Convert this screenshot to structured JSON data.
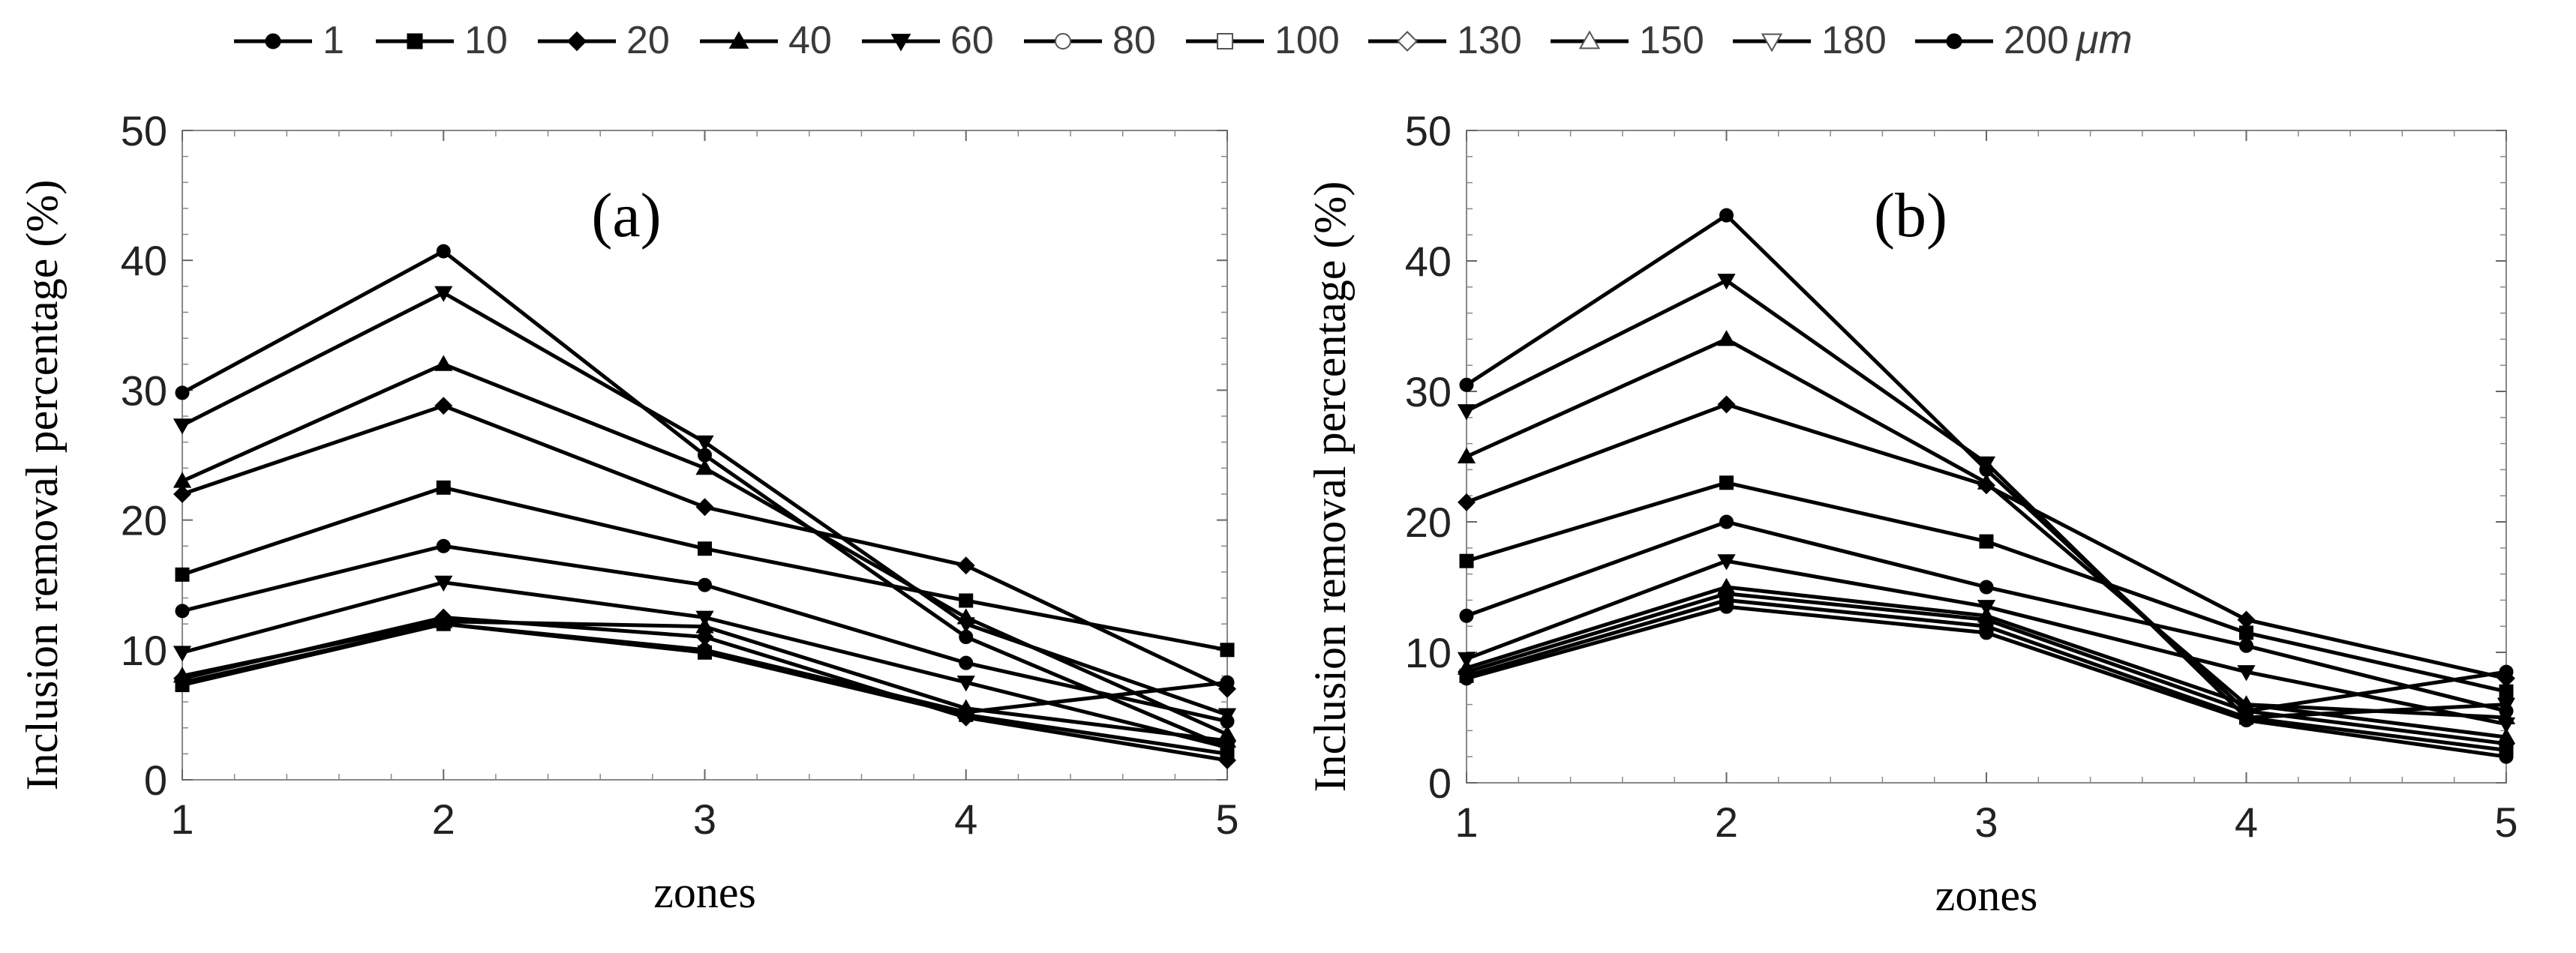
{
  "legend": {
    "items": [
      {
        "label": "1",
        "marker": "circle-filled"
      },
      {
        "label": "10",
        "marker": "square-filled"
      },
      {
        "label": "20",
        "marker": "diamond-filled"
      },
      {
        "label": "40",
        "marker": "triangle-up-filled"
      },
      {
        "label": "60",
        "marker": "triangle-down-filled"
      },
      {
        "label": "80",
        "marker": "circle-open"
      },
      {
        "label": "100",
        "marker": "square-open"
      },
      {
        "label": "130",
        "marker": "diamond-open"
      },
      {
        "label": "150",
        "marker": "triangle-up-open"
      },
      {
        "label": "180",
        "marker": "triangle-down-open"
      },
      {
        "label": "200",
        "marker": "circle-filled"
      }
    ],
    "unit": "μm"
  },
  "chart_data": [
    {
      "type": "line",
      "title": "(a)",
      "xlabel": "zones",
      "ylabel": "Inclusion removal percentage (%)",
      "x": [
        1,
        2,
        3,
        4,
        5
      ],
      "xticks": [
        "1",
        "2",
        "3",
        "4",
        "5"
      ],
      "yticks": [
        "0",
        "10",
        "20",
        "30",
        "40",
        "50"
      ],
      "xlim": [
        1,
        5
      ],
      "ylim": [
        0,
        50
      ],
      "grid": false,
      "series": [
        {
          "name": "1",
          "marker": "circle-filled",
          "values": [
            7.5,
            12.0,
            10.0,
            5.2,
            7.5
          ]
        },
        {
          "name": "10",
          "marker": "square-filled",
          "values": [
            7.3,
            12.0,
            9.8,
            5.0,
            2.0
          ]
        },
        {
          "name": "20",
          "marker": "diamond-filled",
          "values": [
            7.8,
            12.5,
            11.0,
            4.8,
            1.5
          ]
        },
        {
          "name": "40",
          "marker": "triangle-up-filled",
          "values": [
            8.0,
            12.2,
            11.8,
            5.5,
            3.0
          ]
        },
        {
          "name": "60",
          "marker": "triangle-down-filled",
          "values": [
            9.8,
            15.2,
            12.5,
            7.5,
            2.5
          ]
        },
        {
          "name": "80",
          "marker": "circle-filled",
          "values": [
            13.0,
            18.0,
            15.0,
            9.0,
            4.5
          ]
        },
        {
          "name": "100",
          "marker": "square-filled",
          "values": [
            15.8,
            22.5,
            17.8,
            13.8,
            10.0
          ]
        },
        {
          "name": "130",
          "marker": "diamond-filled",
          "values": [
            22.0,
            28.8,
            21.0,
            16.5,
            7.0
          ]
        },
        {
          "name": "150",
          "marker": "triangle-up-filled",
          "values": [
            23.0,
            32.0,
            24.0,
            12.5,
            3.5
          ]
        },
        {
          "name": "180",
          "marker": "triangle-down-filled",
          "values": [
            27.3,
            37.5,
            26.0,
            12.0,
            5.0
          ]
        },
        {
          "name": "200",
          "marker": "circle-filled",
          "values": [
            29.8,
            40.7,
            25.0,
            11.0,
            2.5
          ]
        }
      ]
    },
    {
      "type": "line",
      "title": "(b)",
      "xlabel": "zones",
      "ylabel": "Inclusion removal percentage (%)",
      "x": [
        1,
        2,
        3,
        4,
        5
      ],
      "xticks": [
        "1",
        "2",
        "3",
        "4",
        "5"
      ],
      "yticks": [
        "0",
        "10",
        "20",
        "30",
        "40",
        "50"
      ],
      "xlim": [
        1,
        5
      ],
      "ylim": [
        0,
        50
      ],
      "grid": false,
      "series": [
        {
          "name": "1",
          "marker": "circle-filled",
          "values": [
            8.0,
            13.5,
            11.5,
            4.8,
            2.0
          ]
        },
        {
          "name": "10",
          "marker": "square-filled",
          "values": [
            8.2,
            14.0,
            12.0,
            5.0,
            2.5
          ]
        },
        {
          "name": "20",
          "marker": "diamond-filled",
          "values": [
            8.5,
            14.5,
            12.5,
            5.5,
            3.0
          ]
        },
        {
          "name": "40",
          "marker": "triangle-up-filled",
          "values": [
            8.8,
            15.0,
            12.8,
            6.0,
            3.5
          ]
        },
        {
          "name": "60",
          "marker": "triangle-down-filled",
          "values": [
            9.5,
            17.0,
            13.5,
            8.5,
            4.5
          ]
        },
        {
          "name": "80",
          "marker": "circle-filled",
          "values": [
            12.8,
            20.0,
            15.0,
            10.5,
            5.5
          ]
        },
        {
          "name": "100",
          "marker": "square-filled",
          "values": [
            17.0,
            23.0,
            18.5,
            11.5,
            7.0
          ]
        },
        {
          "name": "130",
          "marker": "diamond-filled",
          "values": [
            21.5,
            29.0,
            22.8,
            12.5,
            8.0
          ]
        },
        {
          "name": "150",
          "marker": "triangle-up-filled",
          "values": [
            25.0,
            34.0,
            23.0,
            6.0,
            5.0
          ]
        },
        {
          "name": "180",
          "marker": "triangle-down-filled",
          "values": [
            28.5,
            38.5,
            24.5,
            5.0,
            6.0
          ]
        },
        {
          "name": "200",
          "marker": "circle-filled",
          "values": [
            30.5,
            43.5,
            24.0,
            5.5,
            8.5
          ]
        }
      ]
    }
  ]
}
